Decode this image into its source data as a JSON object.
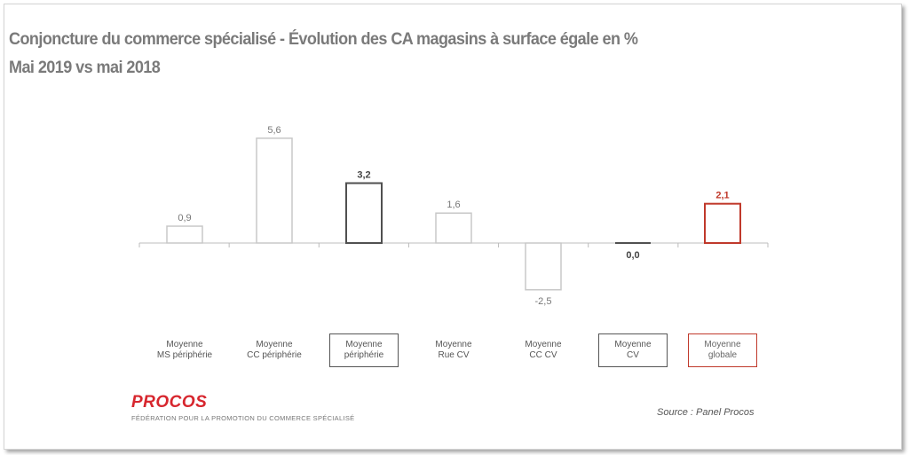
{
  "title_line1": "Conjoncture du commerce spécialisé - Évolution des CA magasins à surface égale en %",
  "title_line2": "Mai 2019 vs mai 2018",
  "chart_data": {
    "type": "bar",
    "categories": [
      "Moyenne\nMS périphérie",
      "Moyenne\nCC périphérie",
      "Moyenne\npériphérie",
      "Moyenne\nRue CV",
      "Moyenne\nCC CV",
      "Moyenne\nCV",
      "Moyenne\nglobale"
    ],
    "values": [
      0.9,
      5.6,
      3.2,
      1.6,
      -2.5,
      0.0,
      2.1
    ],
    "value_labels": [
      "0,9",
      "5,6",
      "3,2",
      "1,6",
      "-2,5",
      "0,0",
      "2,1"
    ],
    "styles": [
      "light",
      "light",
      "dark",
      "light",
      "light",
      "dark",
      "red"
    ],
    "grid": false,
    "colors": {
      "light": "#c8c8c8",
      "dark": "#505050",
      "red": "#c0392b",
      "axis": "#bcbcbc"
    }
  },
  "footer": {
    "logo": "PROCOS",
    "logo_subtitle": "FÉDÉRATION POUR LA PROMOTION DU COMMERCE SPÉCIALISÉ",
    "source": "Source : Panel Procos"
  }
}
